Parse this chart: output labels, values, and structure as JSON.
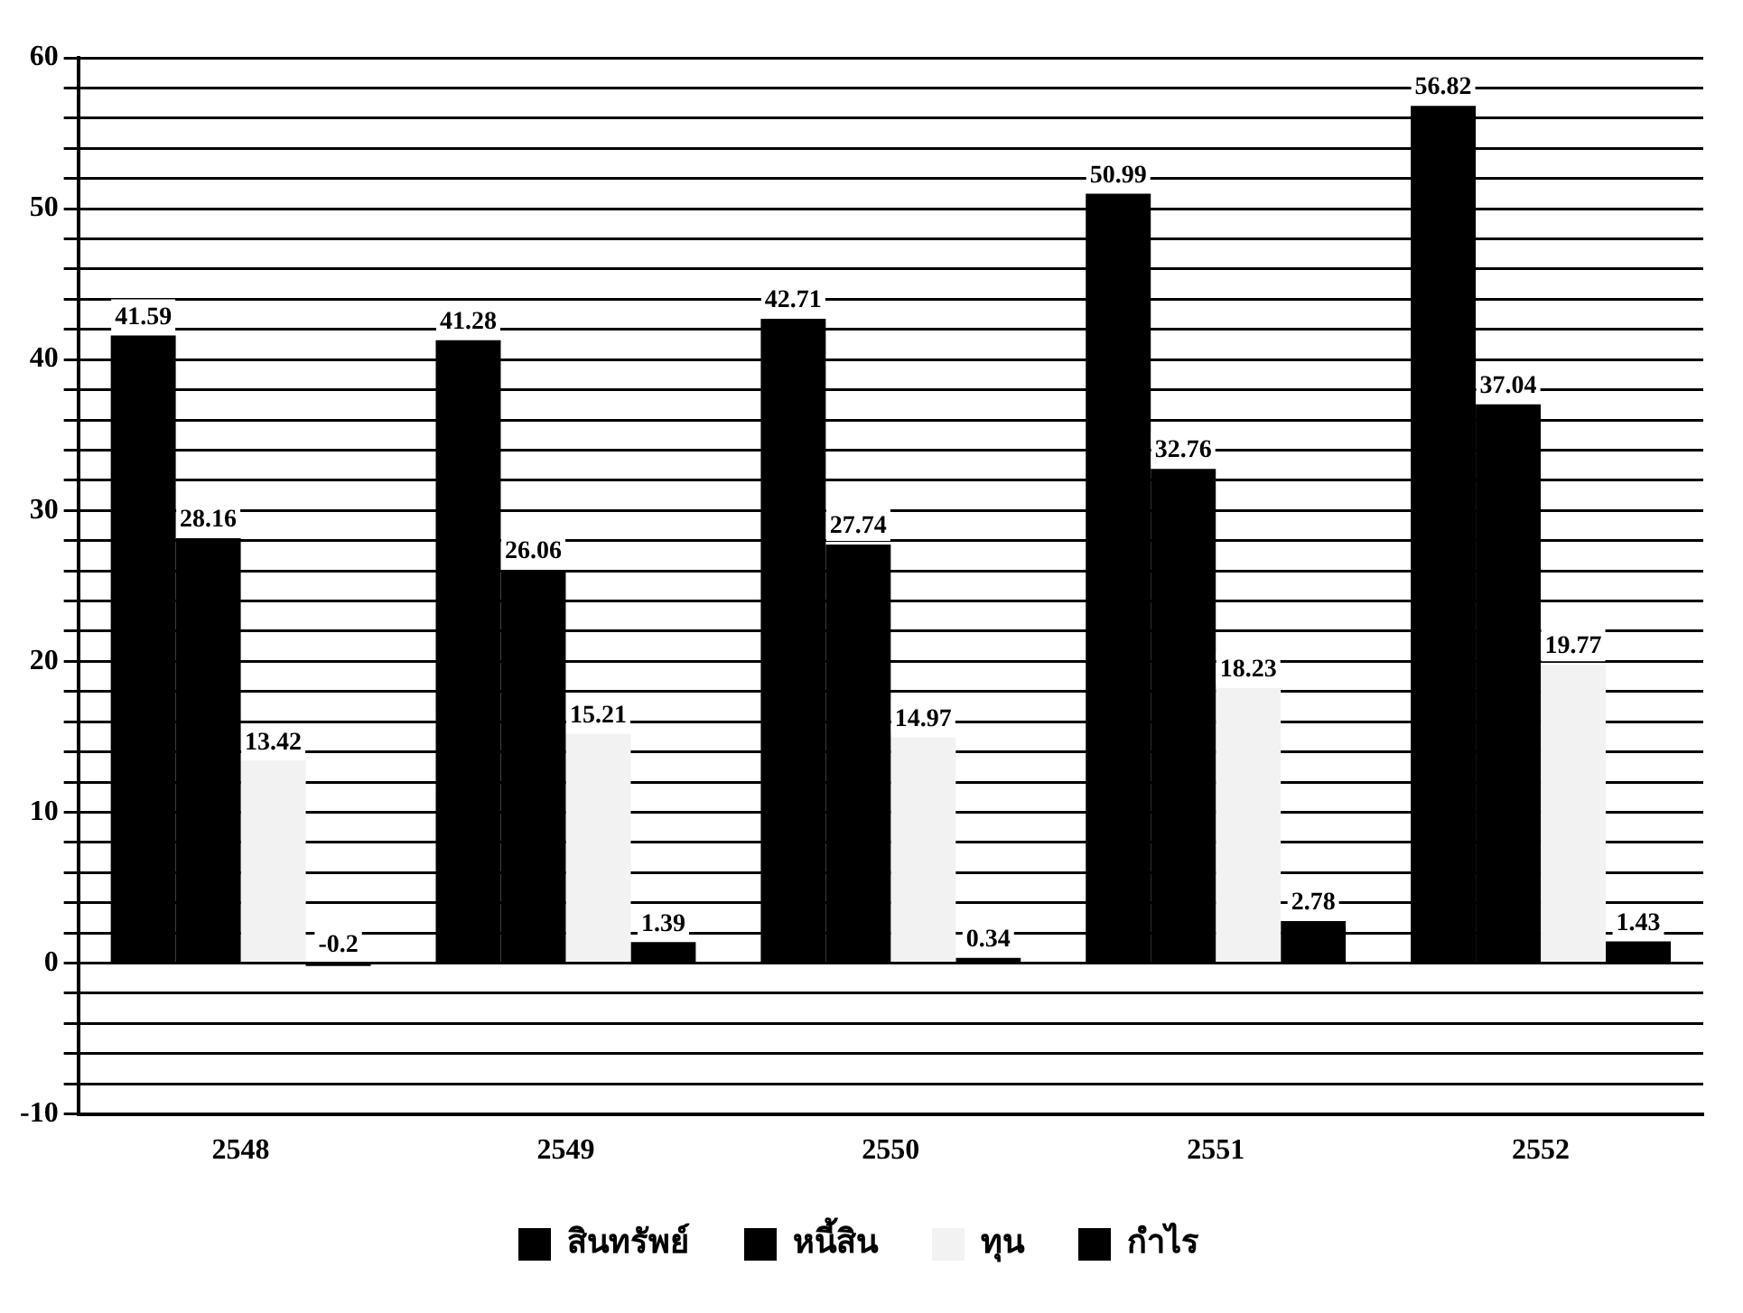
{
  "chart_data": {
    "type": "bar",
    "categories": [
      "2548",
      "2549",
      "2550",
      "2551",
      "2552"
    ],
    "series": [
      {
        "name": "สินทรัพย์",
        "color": "#000000",
        "values": [
          41.59,
          41.28,
          42.71,
          50.99,
          56.82
        ]
      },
      {
        "name": "หนี้สิน",
        "color": "#000000",
        "values": [
          28.16,
          26.06,
          27.74,
          32.76,
          37.04
        ]
      },
      {
        "name": "ทุน",
        "color": "#f2f2f2",
        "values": [
          13.42,
          15.21,
          14.97,
          18.23,
          19.77
        ]
      },
      {
        "name": "กำไร",
        "color": "#000000",
        "values": [
          -0.2,
          1.39,
          0.34,
          2.78,
          1.43
        ]
      }
    ],
    "ylim": [
      -10,
      60
    ],
    "yticks": [
      -10,
      {
        "value": -8,
        "label": null
      },
      {
        "value": -6,
        "label": null
      },
      {
        "value": -4,
        "label": null
      },
      {
        "value": -2,
        "label": null
      },
      0,
      {
        "value": 2,
        "label": null
      },
      {
        "value": 4,
        "label": null
      },
      {
        "value": 6,
        "label": null
      },
      {
        "value": 8,
        "label": null
      },
      10,
      {
        "value": 12,
        "label": null
      },
      {
        "value": 14,
        "label": null
      },
      {
        "value": 16,
        "label": null
      },
      {
        "value": 18,
        "label": null
      },
      20,
      {
        "value": 22,
        "label": null
      },
      {
        "value": 24,
        "label": null
      },
      {
        "value": 26,
        "label": null
      },
      {
        "value": 28,
        "label": null
      },
      30,
      {
        "value": 32,
        "label": null
      },
      {
        "value": 34,
        "label": null
      },
      {
        "value": 36,
        "label": null
      },
      {
        "value": 38,
        "label": null
      },
      40,
      {
        "value": 42,
        "label": null
      },
      {
        "value": 44,
        "label": null
      },
      {
        "value": 46,
        "label": null
      },
      {
        "value": 48,
        "label": null
      },
      50,
      {
        "value": 52,
        "label": null
      },
      {
        "value": 54,
        "label": null
      },
      {
        "value": 56,
        "label": null
      },
      {
        "value": 58,
        "label": null
      },
      60
    ],
    "grid": "y",
    "legend": "bottom",
    "data_labels": true
  }
}
